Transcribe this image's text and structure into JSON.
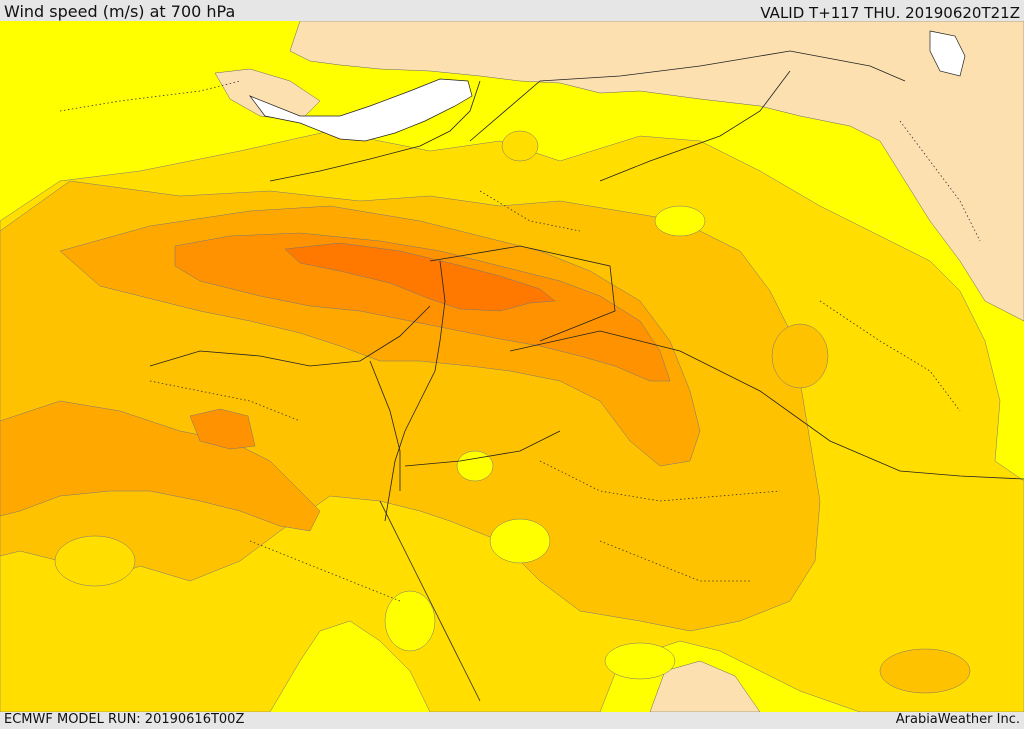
{
  "header": {
    "title": "Wind speed (m/s) at 700 hPa",
    "valid": "VALID T+117 THU. 20190620T21Z"
  },
  "footer": {
    "model_run": "ECMWF MODEL RUN: 20190616T00Z",
    "credit": "ArabiaWeather Inc."
  },
  "map": {
    "colors": {
      "tan": "#fde0b0",
      "yellow": "#ffff00",
      "gold": "#ffde00",
      "amber": "#ffc200",
      "orange_light": "#ffa800",
      "orange": "#ff9200",
      "orange_dark": "#ff7800",
      "water": "#ffffff"
    }
  }
}
